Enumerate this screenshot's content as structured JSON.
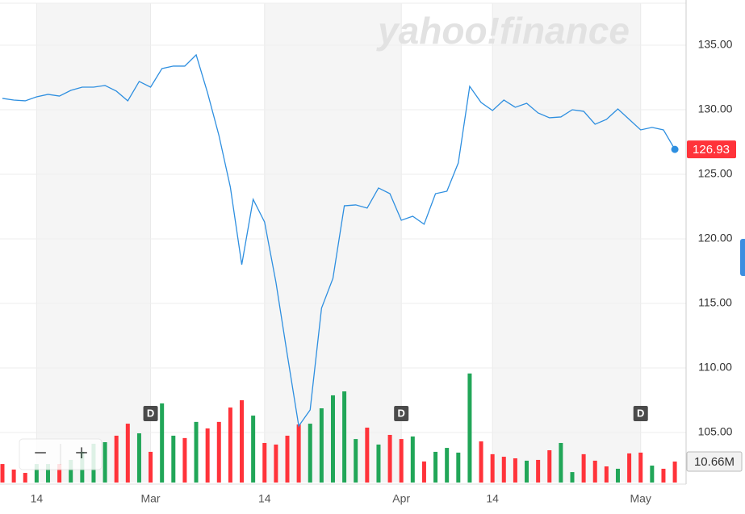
{
  "chart_data": {
    "type": "line",
    "watermark": "yahoo!finance",
    "categories": [
      null,
      null,
      null,
      "14",
      null,
      null,
      null,
      null,
      null,
      null,
      null,
      null,
      null,
      "Mar",
      null,
      null,
      null,
      null,
      null,
      null,
      null,
      null,
      null,
      "14",
      null,
      null,
      null,
      null,
      null,
      null,
      null,
      null,
      null,
      null,
      null,
      "Apr",
      null,
      null,
      null,
      null,
      null,
      null,
      null,
      "14",
      null,
      null,
      null,
      null,
      null,
      null,
      null,
      null,
      null,
      null,
      null,
      null,
      "May",
      null,
      null,
      null
    ],
    "values": [
      130.88,
      130.75,
      130.69,
      131.0,
      131.19,
      131.06,
      131.5,
      131.75,
      131.75,
      131.88,
      131.44,
      130.69,
      132.19,
      131.75,
      133.19,
      133.38,
      133.38,
      134.25,
      131.31,
      128.0,
      124.0,
      118.0,
      123.06,
      121.31,
      116.63,
      111.0,
      105.5,
      106.75,
      114.63,
      116.94,
      122.56,
      122.63,
      122.38,
      123.94,
      123.5,
      121.44,
      121.75,
      121.13,
      123.5,
      123.69,
      125.88,
      131.81,
      130.56,
      129.94,
      130.75,
      130.19,
      130.5,
      129.75,
      129.38,
      129.44,
      130.0,
      129.88,
      128.88,
      129.25,
      130.06,
      129.25,
      128.44,
      128.63,
      128.44,
      126.93
    ],
    "color": "#2e8fe0",
    "ylim": [
      101.125,
      138.25
    ],
    "yticks": [
      {
        "value": 105,
        "label": "105.00"
      },
      {
        "value": 110,
        "label": "110.00"
      },
      {
        "value": 115,
        "label": "115.00"
      },
      {
        "value": 120,
        "label": "120.00"
      },
      {
        "value": 125,
        "label": "125.00"
      },
      {
        "value": 130,
        "label": "130.00"
      },
      {
        "value": 135,
        "label": "135.00"
      }
    ],
    "grid": true,
    "last_price_color": "#ff333a",
    "events": [
      null,
      null,
      null,
      null,
      null,
      null,
      null,
      null,
      null,
      null,
      null,
      null,
      null,
      "D",
      null,
      null,
      null,
      null,
      null,
      null,
      null,
      null,
      null,
      null,
      null,
      null,
      null,
      null,
      null,
      null,
      null,
      null,
      null,
      null,
      null,
      "D",
      null,
      null,
      null,
      null,
      null,
      null,
      null,
      null,
      null,
      null,
      null,
      null,
      null,
      null,
      null,
      null,
      null,
      null,
      null,
      null,
      "D",
      null,
      null,
      null
    ],
    "volume": {
      "values": [
        9.4,
        6.6,
        4.9,
        9.4,
        9.4,
        9.4,
        11.5,
        15.6,
        19.7,
        20.5,
        23.8,
        29.9,
        25.0,
        15.6,
        40.2,
        23.8,
        22.6,
        30.8,
        27.5,
        30.8,
        38.1,
        41.8,
        34.0,
        20.1,
        19.3,
        23.8,
        29.5,
        29.9,
        37.7,
        44.3,
        46.3,
        22.1,
        27.9,
        19.3,
        24.2,
        22.1,
        23.4,
        10.7,
        15.6,
        17.6,
        15.2,
        55.4,
        20.9,
        14.4,
        13.1,
        12.3,
        11.1,
        11.5,
        16.4,
        20.1,
        5.3,
        14.4,
        11.1,
        8.2,
        7.0,
        14.8,
        15.2,
        8.6,
        7.0,
        10.66
      ],
      "value_labels": [
        null,
        null,
        null,
        null,
        null,
        null,
        null,
        null,
        null,
        null,
        null,
        null,
        null,
        null,
        null,
        null,
        null,
        null,
        null,
        null,
        null,
        null,
        null,
        null,
        null,
        null,
        null,
        null,
        null,
        null,
        null,
        null,
        null,
        null,
        null,
        null,
        null,
        null,
        null,
        null,
        null,
        null,
        null,
        null,
        null,
        null,
        null,
        null,
        null,
        null,
        null,
        null,
        null,
        null,
        null,
        null,
        null,
        null,
        null,
        "10.66M"
      ],
      "directions": [
        "down",
        "down",
        "down",
        "up",
        "up",
        "down",
        "up",
        "up",
        "up",
        "up",
        "down",
        "down",
        "up",
        "down",
        "up",
        "up",
        "down",
        "up",
        "down",
        "down",
        "down",
        "down",
        "up",
        "down",
        "down",
        "down",
        "down",
        "up",
        "up",
        "up",
        "up",
        "up",
        "down",
        "up",
        "down",
        "down",
        "up",
        "down",
        "up",
        "up",
        "up",
        "up",
        "down",
        "down",
        "down",
        "down",
        "up",
        "down",
        "down",
        "up",
        "up",
        "down",
        "down",
        "down",
        "up",
        "down",
        "down",
        "up",
        "down",
        "down"
      ],
      "up_color": "#21a658",
      "down_color": "#ff333a",
      "ylim": [
        0,
        243.5
      ]
    },
    "controls": [
      "−",
      "+"
    ]
  }
}
